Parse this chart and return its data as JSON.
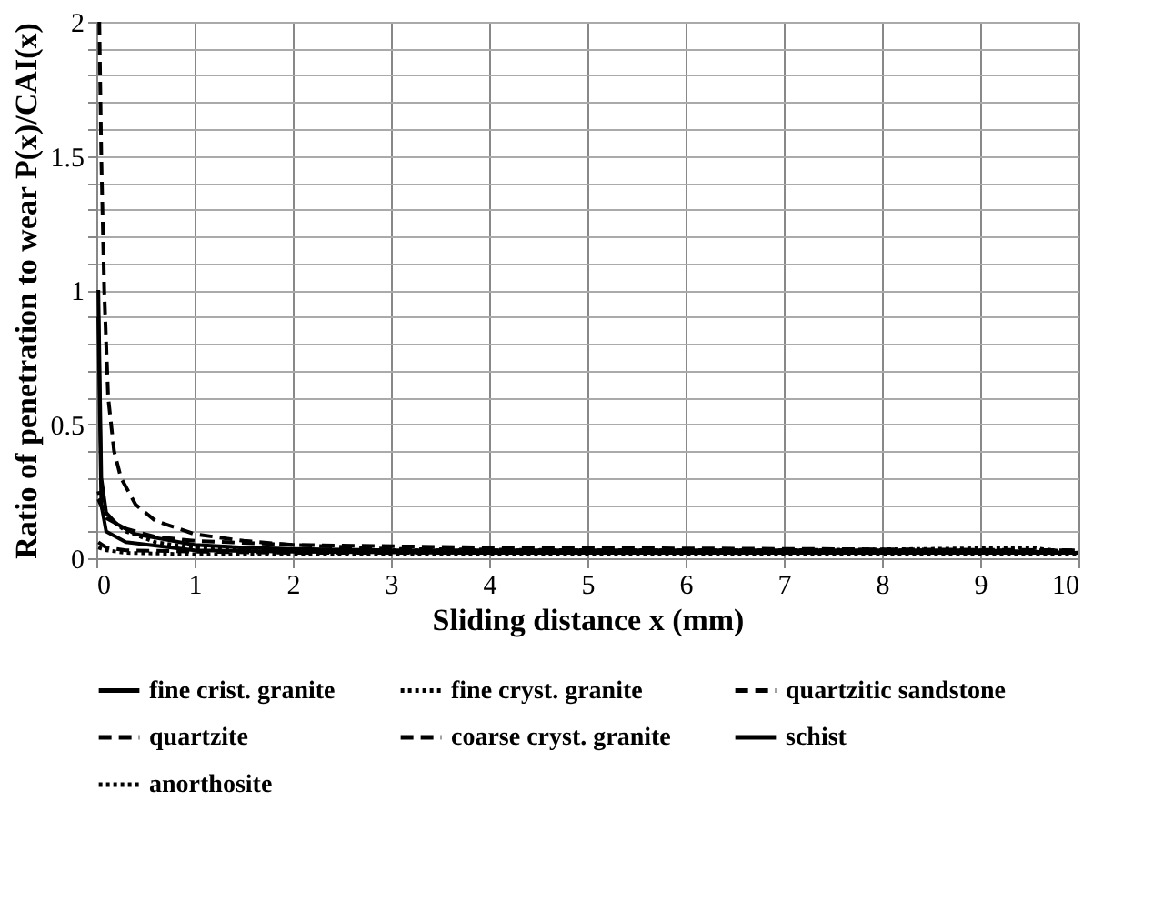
{
  "chart_data": {
    "type": "line",
    "xlabel": "Sliding distance x (mm)",
    "ylabel": "Ratio of penetration to wear P(x)/CAI(x)",
    "xlim": [
      0,
      10
    ],
    "ylim": [
      0,
      2
    ],
    "xticks": [
      0,
      1,
      2,
      3,
      4,
      5,
      6,
      7,
      8,
      9,
      10
    ],
    "yticks": [
      0,
      {
        "value": 0.1,
        "label": null
      },
      {
        "value": 0.2,
        "label": null
      },
      {
        "value": 0.3,
        "label": null
      },
      {
        "value": 0.4,
        "label": null
      },
      0.5,
      {
        "value": 0.6,
        "label": null
      },
      {
        "value": 0.7,
        "label": null
      },
      {
        "value": 0.8,
        "label": null
      },
      {
        "value": 0.9,
        "label": null
      },
      1,
      {
        "value": 1.1,
        "label": null
      },
      {
        "value": 1.2,
        "label": null
      },
      {
        "value": 1.3,
        "label": null
      },
      {
        "value": 1.4,
        "label": null
      },
      1.5,
      {
        "value": 1.6,
        "label": null
      },
      {
        "value": 1.7,
        "label": null
      },
      {
        "value": 1.8,
        "label": null
      },
      {
        "value": 1.9,
        "label": null
      },
      2
    ],
    "grid": true,
    "legend": "bottom",
    "marker": "none",
    "series": [
      {
        "name": "fine crist. granite",
        "color": "#000000",
        "line_style": "solid",
        "x": [
          0.02,
          0.05,
          0.1,
          0.2,
          0.4,
          0.7,
          1,
          1.5,
          2,
          3,
          5,
          7,
          9,
          10
        ],
        "values": [
          1.0,
          0.3,
          0.17,
          0.13,
          0.09,
          0.07,
          0.05,
          0.04,
          0.035,
          0.03,
          0.03,
          0.03,
          0.03,
          0.02
        ]
      },
      {
        "name": "fine cryst. granite",
        "color": "#000000",
        "line_style": "dotted",
        "x": [
          0.02,
          0.05,
          0.1,
          0.3,
          0.6,
          1,
          2,
          3,
          5,
          7,
          8.5,
          9.5,
          10
        ],
        "values": [
          0.25,
          0.2,
          0.16,
          0.1,
          0.06,
          0.04,
          0.03,
          0.03,
          0.03,
          0.03,
          0.035,
          0.04,
          0.02
        ]
      },
      {
        "name": "quartzitic sandstone",
        "color": "#000000",
        "line_style": "dashed",
        "x": [
          0.03,
          0.05,
          0.08,
          0.12,
          0.18,
          0.25,
          0.4,
          0.6,
          1,
          1.5,
          2,
          3,
          5,
          7,
          10
        ],
        "values": [
          2.0,
          1.5,
          1.0,
          0.6,
          0.4,
          0.3,
          0.2,
          0.14,
          0.09,
          0.065,
          0.05,
          0.035,
          0.03,
          0.03,
          0.03
        ]
      },
      {
        "name": "quartzite",
        "color": "#000000",
        "line_style": "dashed",
        "x": [
          0.02,
          0.1,
          0.3,
          0.6,
          1,
          2,
          4,
          7,
          10
        ],
        "values": [
          0.22,
          0.15,
          0.11,
          0.08,
          0.065,
          0.05,
          0.04,
          0.035,
          0.03
        ]
      },
      {
        "name": "coarse cryst. granite",
        "color": "#000000",
        "line_style": "dashed",
        "x": [
          0.02,
          0.1,
          0.3,
          1,
          2,
          4,
          7,
          10
        ],
        "values": [
          0.06,
          0.04,
          0.03,
          0.025,
          0.02,
          0.02,
          0.02,
          0.02
        ]
      },
      {
        "name": "schist",
        "color": "#000000",
        "line_style": "solid",
        "x": [
          0.02,
          0.05,
          0.1,
          0.3,
          1,
          2,
          4,
          7,
          10
        ],
        "values": [
          0.9,
          0.2,
          0.1,
          0.06,
          0.03,
          0.025,
          0.02,
          0.02,
          0.02
        ]
      },
      {
        "name": "anorthosite",
        "color": "#000000",
        "line_style": "dotted",
        "x": [
          0.02,
          0.1,
          0.3,
          1,
          2,
          4,
          7,
          10
        ],
        "values": [
          0.04,
          0.03,
          0.02,
          0.015,
          0.015,
          0.015,
          0.015,
          0.015
        ]
      }
    ]
  }
}
